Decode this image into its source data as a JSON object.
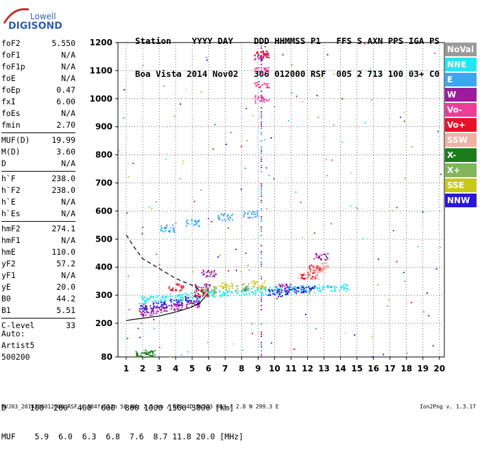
{
  "logo": {
    "line1": "Lowell",
    "line2": "DIGISONDE"
  },
  "header": {
    "line1": "Station    YYYY DAY    DDD HHMMSS P1   FFS S AXN PPS IGA PS",
    "line2": "Boa Vista 2014 Nov02   306 012000 RSF  005 2 713 100 03+ C0"
  },
  "params": [
    {
      "name": "foF2",
      "value": "5.550"
    },
    {
      "name": "foF1",
      "value": "N/A"
    },
    {
      "name": "foF1p",
      "value": "N/A"
    },
    {
      "name": "foE",
      "value": "N/A"
    },
    {
      "name": "foEp",
      "value": "0.47"
    },
    {
      "name": "fxI",
      "value": "6.00"
    },
    {
      "name": "foEs",
      "value": "N/A"
    },
    {
      "name": "fmin",
      "value": "2.70"
    },
    {
      "name": "MUF(D)",
      "value": "19.99"
    },
    {
      "name": "M(D)",
      "value": "3.60"
    },
    {
      "name": "D",
      "value": "N/A"
    },
    {
      "name": "h`F",
      "value": "238.0"
    },
    {
      "name": "h`F2",
      "value": "238.0"
    },
    {
      "name": "h`E",
      "value": "N/A"
    },
    {
      "name": "h`Es",
      "value": "N/A"
    },
    {
      "name": "hmF2",
      "value": "274.1"
    },
    {
      "name": "hmF1",
      "value": "N/A"
    },
    {
      "name": "hmE",
      "value": "110.0"
    },
    {
      "name": "yF2",
      "value": "57.2"
    },
    {
      "name": "yF1",
      "value": "N/A"
    },
    {
      "name": "yE",
      "value": "20.0"
    },
    {
      "name": "B0",
      "value": "44.2"
    },
    {
      "name": "B1",
      "value": "5.51"
    },
    {
      "name": "C-level",
      "value": "33"
    }
  ],
  "artist": {
    "line1": "Auto:",
    "line2": "Artist5",
    "line3": "500200"
  },
  "legend": [
    {
      "label": "NoVal",
      "color": "#9a9a9a"
    },
    {
      "label": "NNE",
      "color": "#22e6f2"
    },
    {
      "label": "E",
      "color": "#3aa8ee"
    },
    {
      "label": "W",
      "color": "#9b1c9c"
    },
    {
      "label": "Vo-",
      "color": "#ee3d96"
    },
    {
      "label": "Vo+",
      "color": "#e8102a"
    },
    {
      "label": "SSW",
      "color": "#f2b0a4"
    },
    {
      "label": "X-",
      "color": "#1a7d1a"
    },
    {
      "label": "X+",
      "color": "#82b45e"
    },
    {
      "label": "SSE",
      "color": "#c8c81a"
    },
    {
      "label": "NNW",
      "color": "#2a18d8"
    }
  ],
  "bottom": {
    "line1": "D     100  200  400  600  800 1000 1500 3000 [km]",
    "line2": "MUF    5.9  6.0  6.3  6.8  7.6  8.7 11.8 20.0 [MHz]"
  },
  "footer": "BVJ03_2014306012000.RSF / 384fx512h 50 kHz 2.5 km / DPS-4D BVJ03 003 / 2.8 N 299.3 E",
  "version": "Ion2Png v. 1.3.17",
  "chart_data": {
    "type": "scatter",
    "x_ticks": [
      1,
      2,
      3,
      4,
      5,
      6,
      7,
      8,
      9,
      10,
      11,
      12,
      13,
      14,
      15,
      16,
      17,
      18,
      19,
      20
    ],
    "y_ticks": [
      80,
      200,
      300,
      400,
      500,
      600,
      700,
      800,
      900,
      1000,
      1100,
      1200
    ],
    "xlim": [
      0.5,
      20.3
    ],
    "ylim": [
      80,
      1200
    ],
    "grid": true,
    "legend_position": "right",
    "series": [
      {
        "name": "NNE",
        "values": [
          [
            2.2,
            285
          ],
          [
            3,
            290
          ],
          [
            4,
            295
          ],
          [
            5,
            300
          ],
          [
            6,
            305
          ],
          [
            7,
            310
          ],
          [
            8,
            315
          ],
          [
            9,
            318
          ],
          [
            10,
            320
          ],
          [
            11,
            322
          ],
          [
            12,
            325
          ],
          [
            13,
            328
          ],
          [
            14,
            330
          ]
        ]
      },
      {
        "name": "E",
        "values": [
          [
            3.5,
            540
          ],
          [
            5,
            560
          ],
          [
            7,
            580
          ],
          [
            8.5,
            590
          ]
        ]
      },
      {
        "name": "NNW",
        "values": [
          [
            2.2,
            255
          ],
          [
            3,
            265
          ],
          [
            4,
            275
          ],
          [
            5,
            285
          ],
          [
            10,
            310
          ],
          [
            11,
            318
          ],
          [
            12,
            322
          ]
        ]
      },
      {
        "name": "W",
        "values": [
          [
            2.2,
            240
          ],
          [
            3,
            250
          ],
          [
            4,
            258
          ],
          [
            5,
            268
          ],
          [
            5.6,
            330
          ],
          [
            6,
            380
          ],
          [
            9.2,
            1150
          ],
          [
            10.5,
            330
          ],
          [
            12.8,
            440
          ]
        ]
      },
      {
        "name": "Vo+",
        "values": [
          [
            4,
            330
          ],
          [
            5.5,
            310
          ],
          [
            9.2,
            1160
          ],
          [
            12,
            370
          ],
          [
            12.5,
            400
          ]
        ]
      },
      {
        "name": "Vo-",
        "values": [
          [
            9.2,
            1000
          ],
          [
            9.2,
            1050
          ],
          [
            9.2,
            1100
          ]
        ]
      },
      {
        "name": "SSW",
        "values": [
          [
            12.2,
            370
          ],
          [
            12.6,
            395
          ],
          [
            13,
            405
          ]
        ]
      },
      {
        "name": "X-",
        "values": [
          [
            2,
            90
          ],
          [
            2.3,
            95
          ]
        ]
      },
      {
        "name": "X+",
        "values": [
          [
            6,
            320
          ],
          [
            8,
            330
          ]
        ]
      },
      {
        "name": "SSE",
        "values": [
          [
            7,
            335
          ],
          [
            9,
            340
          ]
        ]
      }
    ],
    "trace_solid": [
      [
        1,
        210
      ],
      [
        2,
        218
      ],
      [
        3,
        226
      ],
      [
        4,
        240
      ],
      [
        5,
        258
      ],
      [
        5.5,
        275
      ],
      [
        5.8,
        295
      ]
    ],
    "trace_dashed": [
      [
        1,
        515
      ],
      [
        1.5,
        470
      ],
      [
        2,
        430
      ],
      [
        3,
        395
      ],
      [
        4,
        360
      ],
      [
        5,
        335
      ],
      [
        5.5,
        315
      ],
      [
        6,
        300
      ]
    ],
    "vertical_band_x": 9.2
  }
}
